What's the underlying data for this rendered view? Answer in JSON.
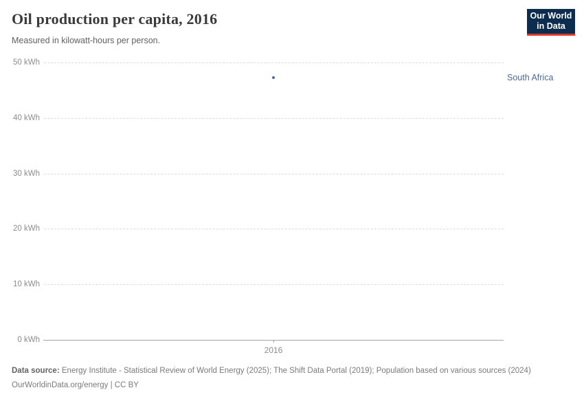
{
  "header": {
    "title": "Oil production per capita, 2016",
    "subtitle": "Measured in kilowatt-hours per person."
  },
  "logo": {
    "line1": "Our World",
    "line2": "in Data",
    "bg_color": "#0d2d4f",
    "accent_color": "#d93a2b"
  },
  "chart_data": {
    "type": "scatter",
    "title": "Oil production per capita, 2016",
    "unit": "kilowatt-hours per person",
    "xlabel": "",
    "ylabel": "",
    "x": [
      2016
    ],
    "x_tick_labels": [
      "2016"
    ],
    "series": [
      {
        "name": "South Africa",
        "values": [
          47.3
        ],
        "color": "#4c6a9c"
      }
    ],
    "ylim": [
      0,
      50
    ],
    "yticks": [
      0,
      10,
      20,
      30,
      40,
      50
    ],
    "ytick_suffix": " kWh",
    "grid": "horizontal-dashed",
    "legend_position": "right-of-point"
  },
  "footer": {
    "data_source_label": "Data source:",
    "data_source_text": "Energy Institute - Statistical Review of World Energy (2025); The Shift Data Portal (2019); Population based on various sources (2024)",
    "citation": "OurWorldinData.org/energy | CC BY"
  }
}
